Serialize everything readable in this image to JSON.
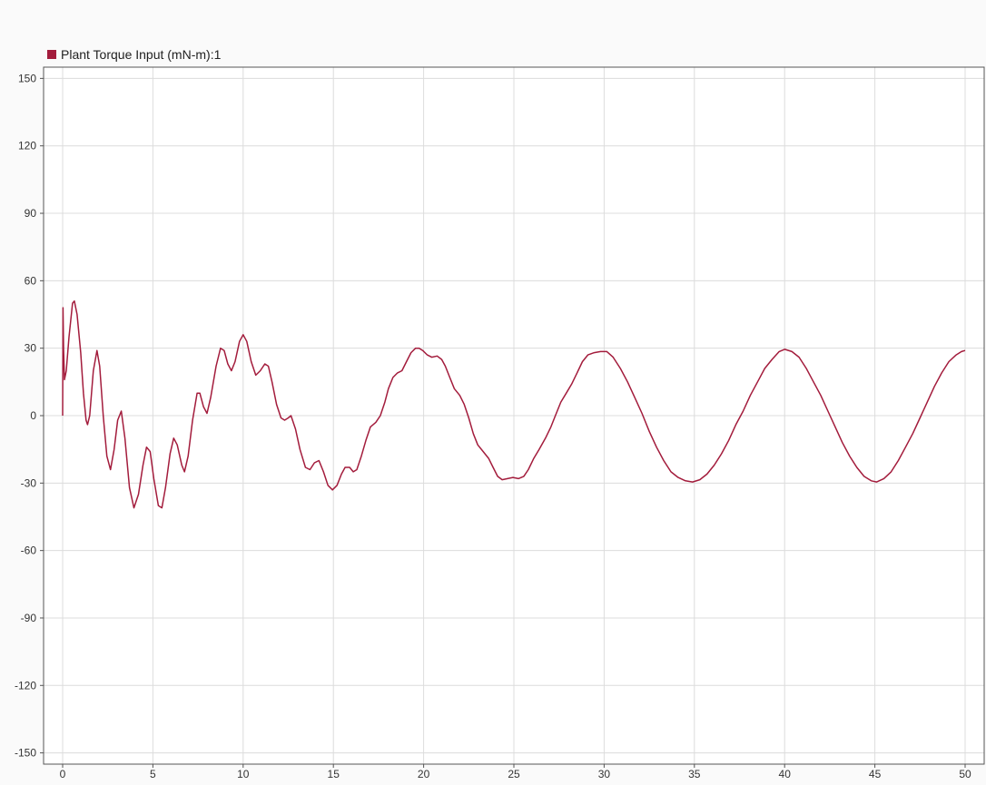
{
  "legend": {
    "label": "Plant Torque Input (mN-m):1",
    "color": "#a31c3c"
  },
  "chart_data": {
    "type": "line",
    "title": "",
    "xlabel": "",
    "ylabel": "",
    "xlim": [
      0,
      50
    ],
    "ylim": [
      -155,
      155
    ],
    "grid": true,
    "legend_position": "top-left",
    "x_ticks": [
      0,
      5,
      10,
      15,
      20,
      25,
      30,
      35,
      40,
      45,
      50
    ],
    "y_ticks": [
      150,
      120,
      90,
      60,
      30,
      0,
      -30,
      -60,
      -90,
      -120,
      -150
    ],
    "series": [
      {
        "name": "Plant Torque Input (mN-m):1",
        "color": "#a31c3c",
        "points": [
          [
            0.0,
            0
          ],
          [
            0.02,
            48
          ],
          [
            0.05,
            30
          ],
          [
            0.1,
            16
          ],
          [
            0.2,
            20
          ],
          [
            0.35,
            35
          ],
          [
            0.55,
            50
          ],
          [
            0.65,
            51
          ],
          [
            0.8,
            45
          ],
          [
            1.0,
            28
          ],
          [
            1.15,
            10
          ],
          [
            1.3,
            -2
          ],
          [
            1.38,
            -4
          ],
          [
            1.5,
            0
          ],
          [
            1.7,
            20
          ],
          [
            1.9,
            29
          ],
          [
            2.05,
            22
          ],
          [
            2.25,
            0
          ],
          [
            2.45,
            -18
          ],
          [
            2.65,
            -24
          ],
          [
            2.85,
            -15
          ],
          [
            3.05,
            -2
          ],
          [
            3.25,
            2
          ],
          [
            3.45,
            -10
          ],
          [
            3.7,
            -32
          ],
          [
            3.95,
            -41
          ],
          [
            4.2,
            -35
          ],
          [
            4.45,
            -22
          ],
          [
            4.65,
            -14
          ],
          [
            4.85,
            -16
          ],
          [
            5.05,
            -28
          ],
          [
            5.3,
            -40
          ],
          [
            5.5,
            -41
          ],
          [
            5.7,
            -32
          ],
          [
            5.95,
            -17
          ],
          [
            6.15,
            -10
          ],
          [
            6.35,
            -13
          ],
          [
            6.6,
            -22
          ],
          [
            6.75,
            -25
          ],
          [
            6.95,
            -18
          ],
          [
            7.2,
            -2
          ],
          [
            7.45,
            10
          ],
          [
            7.6,
            10
          ],
          [
            7.8,
            4
          ],
          [
            8.0,
            1
          ],
          [
            8.2,
            8
          ],
          [
            8.5,
            22
          ],
          [
            8.75,
            30
          ],
          [
            8.95,
            29
          ],
          [
            9.15,
            23
          ],
          [
            9.35,
            20
          ],
          [
            9.55,
            24
          ],
          [
            9.8,
            33
          ],
          [
            10.0,
            36
          ],
          [
            10.2,
            33
          ],
          [
            10.45,
            24
          ],
          [
            10.7,
            18
          ],
          [
            10.95,
            20
          ],
          [
            11.2,
            23
          ],
          [
            11.4,
            22
          ],
          [
            11.6,
            15
          ],
          [
            11.85,
            5
          ],
          [
            12.1,
            -1
          ],
          [
            12.3,
            -2
          ],
          [
            12.5,
            -1
          ],
          [
            12.65,
            0
          ],
          [
            12.9,
            -6
          ],
          [
            13.15,
            -15
          ],
          [
            13.45,
            -23
          ],
          [
            13.7,
            -24
          ],
          [
            13.95,
            -21
          ],
          [
            14.2,
            -20
          ],
          [
            14.45,
            -25
          ],
          [
            14.7,
            -31
          ],
          [
            14.95,
            -33
          ],
          [
            15.2,
            -31
          ],
          [
            15.45,
            -26
          ],
          [
            15.65,
            -23
          ],
          [
            15.9,
            -23
          ],
          [
            16.1,
            -25
          ],
          [
            16.3,
            -24
          ],
          [
            16.55,
            -18
          ],
          [
            16.8,
            -11
          ],
          [
            17.05,
            -5
          ],
          [
            17.35,
            -3
          ],
          [
            17.6,
            0
          ],
          [
            17.85,
            6
          ],
          [
            18.05,
            12
          ],
          [
            18.3,
            17
          ],
          [
            18.55,
            19
          ],
          [
            18.8,
            20
          ],
          [
            19.05,
            24
          ],
          [
            19.3,
            28
          ],
          [
            19.55,
            30
          ],
          [
            19.75,
            30
          ],
          [
            19.95,
            29
          ],
          [
            20.2,
            27
          ],
          [
            20.45,
            26
          ],
          [
            20.75,
            26.5
          ],
          [
            21.0,
            25
          ],
          [
            21.2,
            22
          ],
          [
            21.45,
            17
          ],
          [
            21.7,
            12
          ],
          [
            22.0,
            9
          ],
          [
            22.25,
            5
          ],
          [
            22.5,
            -1
          ],
          [
            22.75,
            -8
          ],
          [
            23.0,
            -13
          ],
          [
            23.3,
            -16
          ],
          [
            23.6,
            -19
          ],
          [
            23.85,
            -23
          ],
          [
            24.1,
            -27
          ],
          [
            24.35,
            -28.5
          ],
          [
            24.65,
            -28
          ],
          [
            24.95,
            -27.5
          ],
          [
            25.25,
            -28
          ],
          [
            25.55,
            -27
          ],
          [
            25.8,
            -24
          ],
          [
            26.1,
            -19
          ],
          [
            26.4,
            -15
          ],
          [
            26.75,
            -10
          ],
          [
            27.05,
            -5
          ],
          [
            27.3,
            0
          ],
          [
            27.6,
            6
          ],
          [
            27.9,
            10
          ],
          [
            28.2,
            14
          ],
          [
            28.5,
            19
          ],
          [
            28.8,
            24
          ],
          [
            29.1,
            27
          ],
          [
            29.45,
            28
          ],
          [
            29.8,
            28.5
          ],
          [
            30.15,
            28.5
          ],
          [
            30.5,
            26
          ],
          [
            30.9,
            21
          ],
          [
            31.3,
            15
          ],
          [
            31.7,
            8
          ],
          [
            32.1,
            1
          ],
          [
            32.5,
            -7
          ],
          [
            32.9,
            -14
          ],
          [
            33.3,
            -20
          ],
          [
            33.7,
            -25
          ],
          [
            34.1,
            -27.5
          ],
          [
            34.5,
            -29
          ],
          [
            34.9,
            -29.5
          ],
          [
            35.3,
            -28.5
          ],
          [
            35.7,
            -26
          ],
          [
            36.1,
            -22
          ],
          [
            36.5,
            -17
          ],
          [
            36.9,
            -11
          ],
          [
            37.3,
            -4
          ],
          [
            37.7,
            2
          ],
          [
            38.1,
            9
          ],
          [
            38.5,
            15
          ],
          [
            38.9,
            21
          ],
          [
            39.3,
            25
          ],
          [
            39.7,
            28.5
          ],
          [
            40.0,
            29.5
          ],
          [
            40.4,
            28.5
          ],
          [
            40.8,
            26
          ],
          [
            41.2,
            21
          ],
          [
            41.6,
            15
          ],
          [
            42.0,
            9
          ],
          [
            42.4,
            2
          ],
          [
            42.8,
            -5
          ],
          [
            43.2,
            -12
          ],
          [
            43.6,
            -18
          ],
          [
            44.0,
            -23
          ],
          [
            44.4,
            -27
          ],
          [
            44.8,
            -29
          ],
          [
            45.1,
            -29.5
          ],
          [
            45.5,
            -28
          ],
          [
            45.9,
            -25
          ],
          [
            46.3,
            -20
          ],
          [
            46.7,
            -14
          ],
          [
            47.1,
            -8
          ],
          [
            47.5,
            -1
          ],
          [
            47.9,
            6
          ],
          [
            48.3,
            13
          ],
          [
            48.7,
            19
          ],
          [
            49.1,
            24
          ],
          [
            49.5,
            27
          ],
          [
            49.8,
            28.5
          ],
          [
            50.0,
            29
          ]
        ]
      }
    ]
  }
}
